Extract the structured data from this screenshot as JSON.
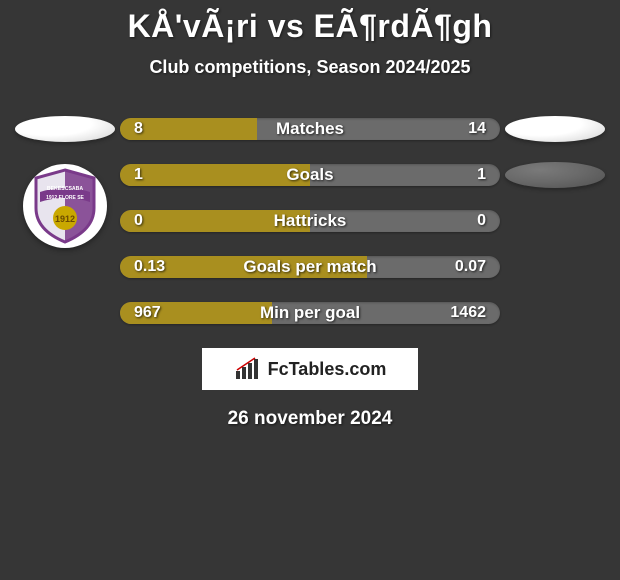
{
  "title": "KÅ'vÃ¡ri vs EÃ¶rdÃ¶gh",
  "subtitle": "Club competitions, Season 2024/2025",
  "date": "26 november 2024",
  "brand": "FcTables.com",
  "colors": {
    "accent_left": "#a98f1f",
    "bg_right": "#6b6b6b",
    "track": "#6b6b6b"
  },
  "rows": [
    {
      "label": "Matches",
      "left_val": "8",
      "right_val": "14",
      "left_pct": 36
    },
    {
      "label": "Goals",
      "left_val": "1",
      "right_val": "1",
      "left_pct": 50
    },
    {
      "label": "Hattricks",
      "left_val": "0",
      "right_val": "0",
      "left_pct": 50
    },
    {
      "label": "Goals per match",
      "left_val": "0.13",
      "right_val": "0.07",
      "left_pct": 65
    },
    {
      "label": "Min per goal",
      "left_val": "967",
      "right_val": "1462",
      "left_pct": 40
    }
  ],
  "side_decor": {
    "left": [
      "ellipse-light",
      "badge"
    ],
    "right": [
      "ellipse-light",
      "ellipse-dark"
    ]
  },
  "badge_colors": {
    "outline": "#7a3a8a",
    "stripe": "#7a3a8a",
    "field": "#e8e4ee",
    "band": "#c9a800",
    "text1": "BEKESCSABA",
    "text2": "1912 ELORE SE"
  }
}
